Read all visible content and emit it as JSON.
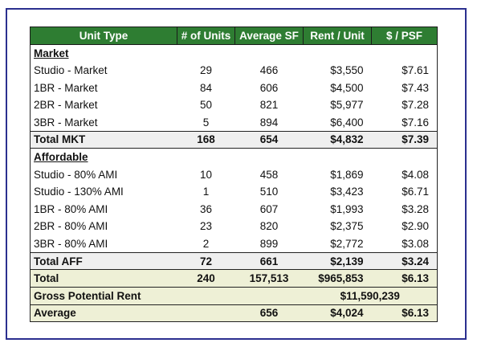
{
  "headers": [
    "Unit Type",
    "# of Units",
    "Average SF",
    "Rent / Unit",
    "$ / PSF"
  ],
  "market": {
    "label": "Market ",
    "rows": [
      {
        "type": "Studio - Market",
        "units": "29",
        "sf": "466",
        "rent": "$3,550",
        "psf": "$7.61"
      },
      {
        "type": "1BR - Market",
        "units": "84",
        "sf": "606",
        "rent": "$4,500",
        "psf": "$7.43"
      },
      {
        "type": "2BR - Market",
        "units": "50",
        "sf": "821",
        "rent": "$5,977",
        "psf": "$7.28"
      },
      {
        "type": "3BR - Market",
        "units": "5",
        "sf": "894",
        "rent": "$6,400",
        "psf": "$7.16"
      }
    ],
    "total": {
      "type": "Total MKT",
      "units": "168",
      "sf": "654",
      "rent": "$4,832",
      "psf": "$7.39"
    }
  },
  "affordable": {
    "label": "Affordable",
    "rows": [
      {
        "type": "Studio - 80% AMI",
        "units": "10",
        "sf": "458",
        "rent": "$1,869",
        "psf": "$4.08"
      },
      {
        "type": "Studio - 130% AMI",
        "units": "1",
        "sf": "510",
        "rent": "$3,423",
        "psf": "$6.71"
      },
      {
        "type": "1BR - 80% AMI",
        "units": "36",
        "sf": "607",
        "rent": "$1,993",
        "psf": "$3.28"
      },
      {
        "type": "2BR - 80% AMI",
        "units": "23",
        "sf": "820",
        "rent": "$2,375",
        "psf": "$2.90"
      },
      {
        "type": "3BR - 80% AMI",
        "units": "2",
        "sf": "899",
        "rent": "$2,772",
        "psf": "$3.08"
      }
    ],
    "total": {
      "type": "Total AFF",
      "units": "72",
      "sf": "661",
      "rent": "$2,139",
      "psf": "$3.24"
    }
  },
  "total": {
    "type": "Total",
    "units": "240",
    "sf": "157,513",
    "rent": "$965,853",
    "psf": "$6.13"
  },
  "gross_potential_rent": {
    "label": "Gross Potential Rent",
    "value": "$11,590,239"
  },
  "average": {
    "type": "Average",
    "units": "",
    "sf": "656",
    "rent": "$4,024",
    "psf": "$6.13"
  },
  "colors": {
    "header_bg": "#2e7d32",
    "header_text": "#ffffff",
    "total_bg": "#efefef",
    "summary_bg": "#eef0d6",
    "frame_border": "#2b2f8f"
  }
}
